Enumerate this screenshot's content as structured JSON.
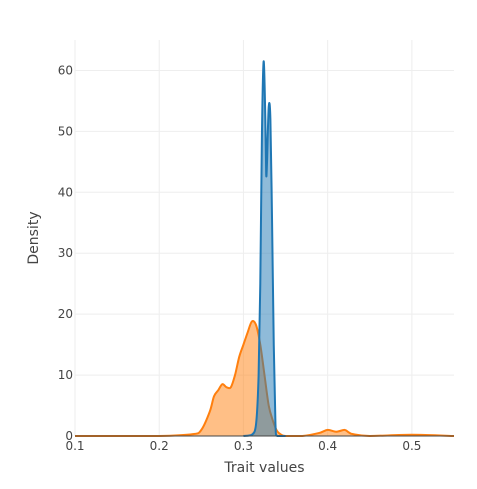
{
  "chart_data": {
    "type": "area",
    "title": "",
    "xlabel": "Trait values",
    "ylabel": "Density",
    "xlim": [
      0.1,
      0.55
    ],
    "ylim": [
      0,
      65
    ],
    "x_ticks": [
      0.1,
      0.2,
      0.3,
      0.4,
      0.5
    ],
    "x_tick_labels": [
      "0.1",
      "0.2",
      "0.3",
      "0.4",
      "0.5"
    ],
    "y_ticks": [
      0,
      10,
      20,
      30,
      40,
      50,
      60
    ],
    "y_tick_labels": [
      "0",
      "10",
      "20",
      "30",
      "40",
      "50",
      "60"
    ],
    "grid": true,
    "legend": "none",
    "series": [
      {
        "color": "#1f77b4",
        "fill_opacity": 0.5,
        "x": [
          0.3,
          0.31,
          0.315,
          0.318,
          0.32,
          0.322,
          0.324,
          0.326,
          0.327,
          0.328,
          0.33,
          0.332,
          0.334,
          0.336,
          0.338,
          0.34,
          0.35
        ],
        "y": [
          0,
          0.2,
          2,
          10,
          25,
          50,
          61.5,
          52,
          43,
          45,
          54,
          52,
          35,
          15,
          2,
          0,
          0
        ]
      },
      {
        "color": "#ff7f0e",
        "fill_opacity": 0.5,
        "x": [
          0.1,
          0.2,
          0.24,
          0.25,
          0.26,
          0.265,
          0.27,
          0.275,
          0.28,
          0.285,
          0.29,
          0.295,
          0.3,
          0.305,
          0.31,
          0.315,
          0.32,
          0.325,
          0.33,
          0.335,
          0.34,
          0.345,
          0.35,
          0.37,
          0.39,
          0.4,
          0.41,
          0.42,
          0.425,
          0.43,
          0.45,
          0.5,
          0.55
        ],
        "y": [
          0,
          0,
          0.3,
          1,
          4,
          6.5,
          7.5,
          8.5,
          8,
          8,
          10,
          13,
          15,
          17,
          18.8,
          18.2,
          15,
          10,
          5,
          2.5,
          0.8,
          0.2,
          0,
          0,
          0.5,
          1,
          0.7,
          1,
          0.6,
          0.3,
          0,
          0.2,
          0
        ]
      }
    ]
  }
}
